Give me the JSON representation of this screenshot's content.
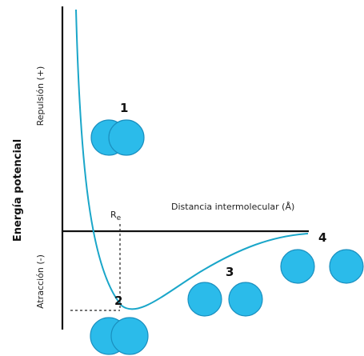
{
  "axes": {
    "y_label": "Energía potencial",
    "repulsion": "Repulsión (+)",
    "attraction": "Atracción (-)",
    "x_label": "Distancia intermolecular (Å)"
  },
  "re_label": {
    "main": "R",
    "sub": "e"
  },
  "states": [
    {
      "label": "1"
    },
    {
      "label": "2"
    },
    {
      "label": "3"
    },
    {
      "label": "4"
    }
  ]
}
